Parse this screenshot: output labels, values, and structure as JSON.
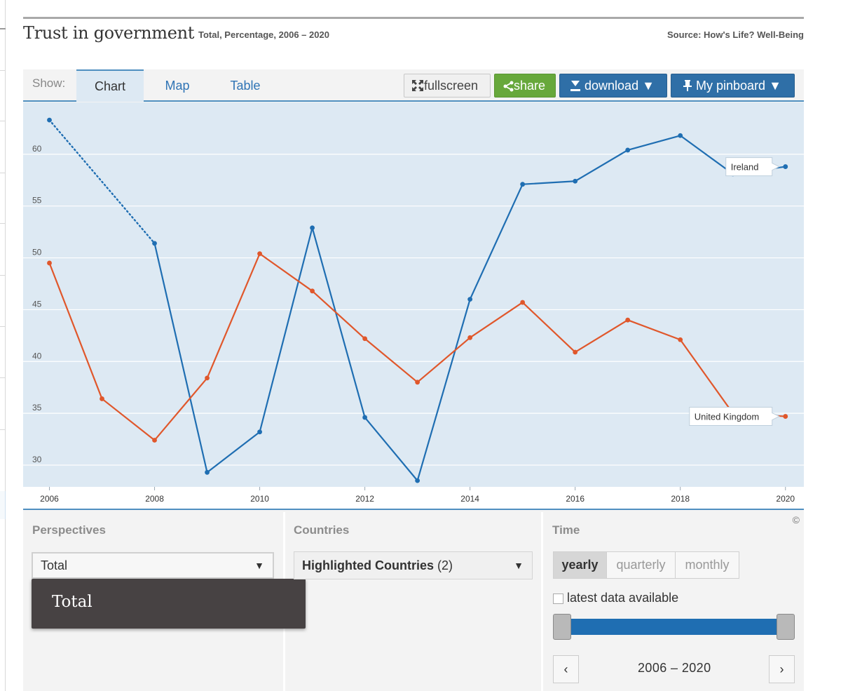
{
  "header": {
    "title": "Trust in government",
    "subtitle": "Total, Percentage, 2006 – 2020",
    "source": "Source: How's Life? Well-Being"
  },
  "tabs": {
    "show_label": "Show:",
    "items": [
      {
        "label": "Chart",
        "active": true
      },
      {
        "label": "Map",
        "active": false
      },
      {
        "label": "Table",
        "active": false
      }
    ]
  },
  "toolbar": {
    "fullscreen": "fullscreen",
    "share": "share",
    "download": "download ▼",
    "pinboard": "My pinboard ▼"
  },
  "chart_data": {
    "type": "line",
    "title": "",
    "xlabel": "",
    "ylabel": "",
    "x_ticks": [
      "2006",
      "2008",
      "2010",
      "2012",
      "2014",
      "2016",
      "2018",
      "2020"
    ],
    "y_ticks": [
      "30",
      "35",
      "40",
      "45",
      "50",
      "55",
      "60"
    ],
    "ylim": [
      27.9,
      65
    ],
    "xlim": [
      2005.5,
      2020.35
    ],
    "grid": true,
    "series": [
      {
        "name": "Ireland",
        "color": "#1f6eb2",
        "gap_dotted_between": [
          2006,
          2008
        ],
        "points": [
          [
            2006,
            63.3
          ],
          [
            2008,
            51.4
          ],
          [
            2009,
            29.3
          ],
          [
            2010,
            33.2
          ],
          [
            2011,
            52.9
          ],
          [
            2012,
            34.6
          ],
          [
            2013,
            28.5
          ],
          [
            2014,
            46.0
          ],
          [
            2015,
            57.1
          ],
          [
            2016,
            57.4
          ],
          [
            2017,
            60.4
          ],
          [
            2018,
            61.8
          ],
          [
            2019,
            58.1
          ],
          [
            2020,
            58.8
          ]
        ]
      },
      {
        "name": "United Kingdom",
        "color": "#e0572b",
        "points": [
          [
            2006,
            49.5
          ],
          [
            2007,
            36.4
          ],
          [
            2008,
            32.4
          ],
          [
            2009,
            38.4
          ],
          [
            2010,
            50.4
          ],
          [
            2011,
            46.8
          ],
          [
            2012,
            42.2
          ],
          [
            2013,
            38.0
          ],
          [
            2014,
            42.3
          ],
          [
            2015,
            45.7
          ],
          [
            2016,
            40.9
          ],
          [
            2017,
            44.0
          ],
          [
            2018,
            42.1
          ],
          [
            2019,
            35.0
          ],
          [
            2020,
            34.7
          ]
        ]
      }
    ]
  },
  "copyright_symbol": "©",
  "perspectives": {
    "title": "Perspectives",
    "selected": "Total",
    "caret": "▼",
    "dropdown_items": [
      "Total"
    ]
  },
  "countries": {
    "title": "Countries",
    "selected": "Highlighted Countries",
    "count": "(2)",
    "caret": "▼"
  },
  "time": {
    "title": "Time",
    "frequencies": [
      {
        "label": "yearly",
        "active": true
      },
      {
        "label": "quarterly",
        "active": false
      },
      {
        "label": "monthly",
        "active": false
      }
    ],
    "latest_label": "latest data available",
    "latest_checked": false,
    "range_label": "2006 – 2020",
    "prev": "‹",
    "next": "›"
  }
}
